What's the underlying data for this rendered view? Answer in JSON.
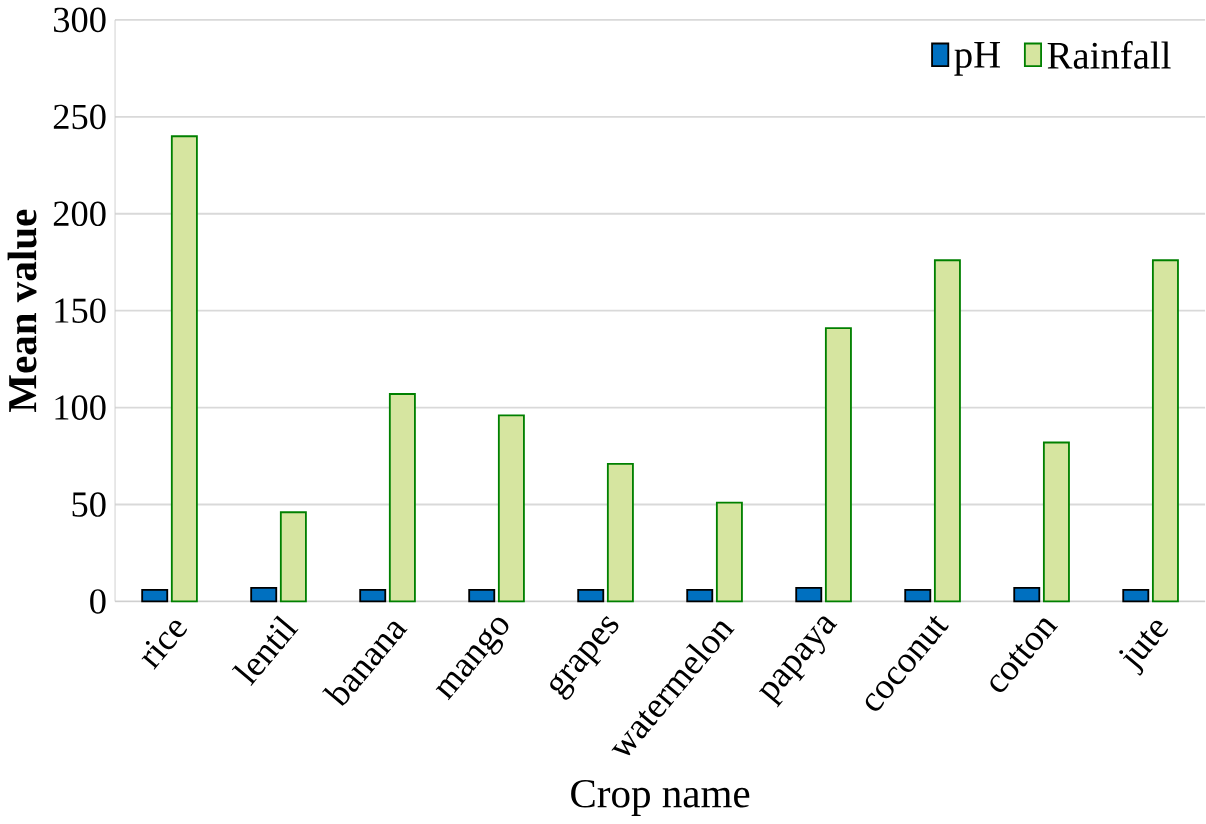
{
  "chart_data": {
    "type": "bar",
    "xlabel": "Crop name",
    "ylabel": "Mean value",
    "categories": [
      "rice",
      "lentil",
      "banana",
      "mango",
      "grapes",
      "watermelon",
      "papaya",
      "coconut",
      "cotton",
      "jute"
    ],
    "series": [
      {
        "name": "pH",
        "color": "#0070c0",
        "values": [
          6,
          7,
          6,
          6,
          6,
          6,
          7,
          6,
          7,
          6
        ]
      },
      {
        "name": "Rainfall",
        "color": "#d6e5a0",
        "values": [
          240,
          46,
          107,
          96,
          71,
          51,
          141,
          176,
          82,
          176
        ]
      }
    ],
    "ylim": [
      0,
      300
    ],
    "yticks": [
      0,
      50,
      100,
      150,
      200,
      250,
      300
    ],
    "grid": "y",
    "legend": "top right"
  }
}
